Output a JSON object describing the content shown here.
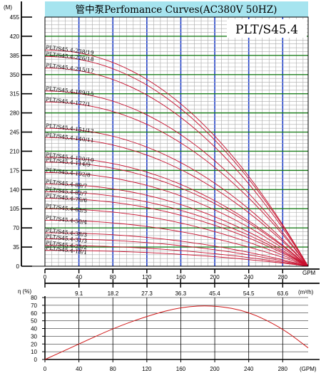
{
  "colors": {
    "title_band": "#a6e4ef",
    "minor_grid": "#a9a9a9",
    "major_grid_v": "#1f3fc9",
    "major_grid_h": "#1c7d1c",
    "curve": "#c8102e",
    "efficiency_curve": "#d01818",
    "axis": "#000000"
  },
  "chart_data": [
    {
      "type": "line",
      "title": "管中泵Perfomance Curves(AC380V 50HZ)",
      "model": "PLT/S45.4",
      "ylabel": "(M)",
      "xlabel": "GPM",
      "xlim": [
        0,
        310
      ],
      "ylim": [
        0,
        455
      ],
      "x_ticks": [
        "0",
        "40",
        "80",
        "120",
        "160",
        "200",
        "240",
        "280"
      ],
      "y_ticks": [
        "0",
        "35",
        "70",
        "105",
        "140",
        "175",
        "210",
        "245",
        "280",
        "315",
        "350",
        "385",
        "420",
        "455"
      ],
      "secondary_x_label": "(m³/h)",
      "secondary_x_ticks": [
        "9.1",
        "18.2",
        "27.3",
        "36.3",
        "45.4",
        "54.5",
        "63.6"
      ],
      "grid": true,
      "shut_off_flow": 310,
      "series": [
        {
          "name": "PLT/S45.4-238/19",
          "shutoff_head": 395
        },
        {
          "name": "PLT/S45.4-226/18",
          "shutoff_head": 383
        },
        {
          "name": "PLT/S45.4-215/17",
          "shutoff_head": 362
        },
        {
          "name": "PLT/S45.4-189/15",
          "shutoff_head": 320
        },
        {
          "name": "PLT/S45.4-177/1",
          "shutoff_head": 300
        },
        {
          "name": "PLT/S45.4-151/12",
          "shutoff_head": 252
        },
        {
          "name": "PLT/S45.4-140/11",
          "shutoff_head": 235
        },
        {
          "name": "PLT/S45.4-120/10",
          "shutoff_head": 199
        },
        {
          "name": "PLT/S45.4-114/9",
          "shutoff_head": 190
        },
        {
          "name": "PLT/S45.4-102/8",
          "shutoff_head": 171
        },
        {
          "name": "PLT/S45.4-88/7",
          "shutoff_head": 150
        },
        {
          "name": "PLT/S45.4-82/7",
          "shutoff_head": 136
        },
        {
          "name": "PLT/S45.4-76/6",
          "shutoff_head": 124
        },
        {
          "name": "PLT/S45.4-63/5",
          "shutoff_head": 105
        },
        {
          "name": "PLT/S45.4-50/4",
          "shutoff_head": 84
        },
        {
          "name": "PLT/S45.4-38/3",
          "shutoff_head": 61
        },
        {
          "name": "PLT/S45.4-31/3",
          "shutoff_head": 50
        },
        {
          "name": "PLT/S45.4-25/2",
          "shutoff_head": 38
        },
        {
          "name": "PLT/S45.4-18/1",
          "shutoff_head": 29
        }
      ]
    },
    {
      "type": "line",
      "ylabel": "η (%)",
      "xlabel": "(GPM)",
      "xlim": [
        0,
        310
      ],
      "ylim": [
        0,
        80
      ],
      "x_ticks": [
        "0",
        "40",
        "80",
        "120",
        "160",
        "200",
        "240",
        "280"
      ],
      "y_ticks": [
        "0",
        "10",
        "20",
        "30",
        "40",
        "50",
        "60",
        "70",
        "80"
      ],
      "grid": true,
      "series": [
        {
          "name": "",
          "x": [
            0,
            40,
            80,
            120,
            160,
            200,
            240,
            280,
            310
          ],
          "y": [
            0,
            20,
            40,
            56,
            68,
            70,
            62,
            40,
            15
          ]
        }
      ]
    }
  ]
}
